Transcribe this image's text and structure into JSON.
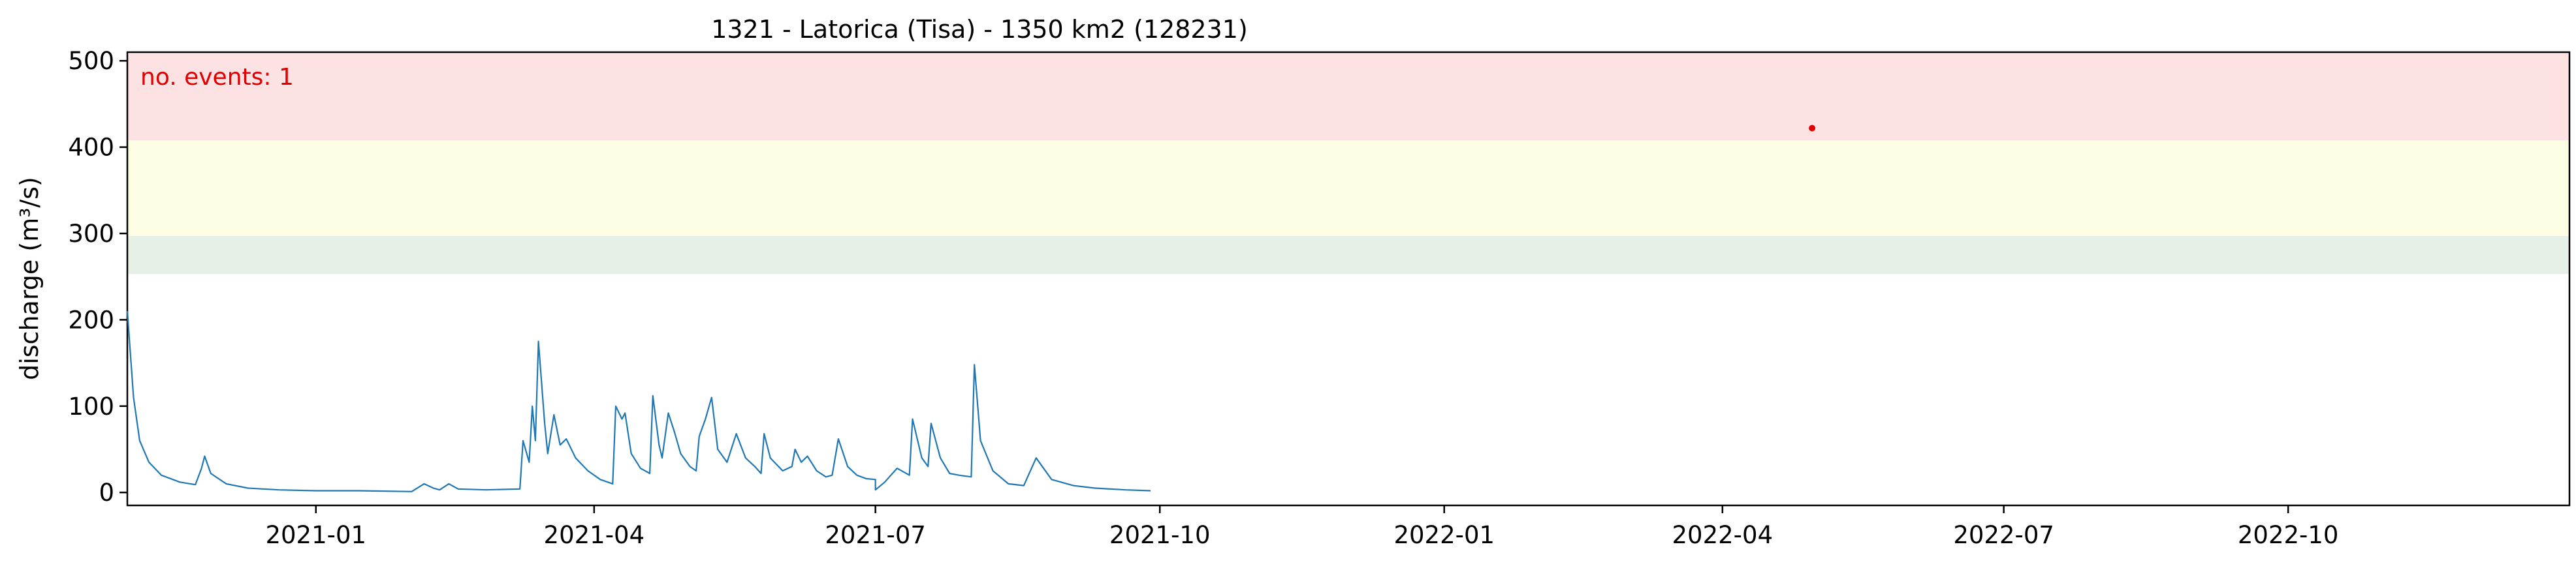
{
  "chart_data": {
    "type": "line",
    "title": "1321 - Latorica (Tisa) - 1350 km2 (128231)",
    "xlabel": "",
    "ylabel": "discharge (m³/s)",
    "annotation": "no. events: 1",
    "xlim": [
      "2020-11-01",
      "2022-12-31"
    ],
    "ylim": [
      -15,
      510
    ],
    "yticks": [
      0,
      100,
      200,
      300,
      400,
      500
    ],
    "xticks": [
      {
        "date": "2021-01-01",
        "label": "2021-01"
      },
      {
        "date": "2021-04-01",
        "label": "2021-04"
      },
      {
        "date": "2021-07-01",
        "label": "2021-07"
      },
      {
        "date": "2021-10-01",
        "label": "2021-10"
      },
      {
        "date": "2022-01-01",
        "label": "2022-01"
      },
      {
        "date": "2022-04-01",
        "label": "2022-04"
      },
      {
        "date": "2022-07-01",
        "label": "2022-07"
      },
      {
        "date": "2022-10-01",
        "label": "2022-10"
      }
    ],
    "threshold_bands": [
      {
        "from": 253,
        "to": 297,
        "color": "#e6f0e6"
      },
      {
        "from": 297,
        "to": 408,
        "color": "#fdfde3"
      },
      {
        "from": 408,
        "to": 510,
        "color": "#fde2e4"
      }
    ],
    "line_color": "#1f77b4",
    "event_point": {
      "date": "2022-04-30",
      "value": 422,
      "color": "#e00000"
    },
    "grid": false,
    "series": [
      {
        "values": [
          [
            "2020-11-01",
            210
          ],
          [
            "2020-11-03",
            110
          ],
          [
            "2020-11-05",
            60
          ],
          [
            "2020-11-08",
            35
          ],
          [
            "2020-11-12",
            20
          ],
          [
            "2020-11-18",
            12
          ],
          [
            "2020-11-23",
            9
          ],
          [
            "2020-11-25",
            28
          ],
          [
            "2020-11-26",
            42
          ],
          [
            "2020-11-28",
            22
          ],
          [
            "2020-12-03",
            10
          ],
          [
            "2020-12-10",
            5
          ],
          [
            "2020-12-20",
            3
          ],
          [
            "2021-01-01",
            2
          ],
          [
            "2021-01-15",
            2
          ],
          [
            "2021-02-01",
            1
          ],
          [
            "2021-02-05",
            10
          ],
          [
            "2021-02-08",
            5
          ],
          [
            "2021-02-10",
            3
          ],
          [
            "2021-02-13",
            10
          ],
          [
            "2021-02-16",
            4
          ],
          [
            "2021-02-25",
            3
          ],
          [
            "2021-03-08",
            4
          ],
          [
            "2021-03-09",
            60
          ],
          [
            "2021-03-11",
            35
          ],
          [
            "2021-03-12",
            100
          ],
          [
            "2021-03-13",
            60
          ],
          [
            "2021-03-14",
            175
          ],
          [
            "2021-03-16",
            80
          ],
          [
            "2021-03-17",
            45
          ],
          [
            "2021-03-19",
            90
          ],
          [
            "2021-03-21",
            55
          ],
          [
            "2021-03-23",
            62
          ],
          [
            "2021-03-26",
            40
          ],
          [
            "2021-03-30",
            25
          ],
          [
            "2021-04-03",
            15
          ],
          [
            "2021-04-07",
            10
          ],
          [
            "2021-04-08",
            100
          ],
          [
            "2021-04-10",
            85
          ],
          [
            "2021-04-11",
            92
          ],
          [
            "2021-04-13",
            45
          ],
          [
            "2021-04-16",
            28
          ],
          [
            "2021-04-19",
            22
          ],
          [
            "2021-04-20",
            112
          ],
          [
            "2021-04-22",
            55
          ],
          [
            "2021-04-23",
            40
          ],
          [
            "2021-04-25",
            92
          ],
          [
            "2021-04-27",
            70
          ],
          [
            "2021-04-29",
            45
          ],
          [
            "2021-05-02",
            30
          ],
          [
            "2021-05-04",
            25
          ],
          [
            "2021-05-05",
            65
          ],
          [
            "2021-05-07",
            85
          ],
          [
            "2021-05-09",
            110
          ],
          [
            "2021-05-11",
            50
          ],
          [
            "2021-05-14",
            35
          ],
          [
            "2021-05-17",
            68
          ],
          [
            "2021-05-20",
            40
          ],
          [
            "2021-05-23",
            30
          ],
          [
            "2021-05-25",
            22
          ],
          [
            "2021-05-26",
            68
          ],
          [
            "2021-05-28",
            40
          ],
          [
            "2021-06-01",
            25
          ],
          [
            "2021-06-04",
            30
          ],
          [
            "2021-06-05",
            50
          ],
          [
            "2021-06-07",
            35
          ],
          [
            "2021-06-09",
            42
          ],
          [
            "2021-06-12",
            25
          ],
          [
            "2021-06-15",
            18
          ],
          [
            "2021-06-17",
            20
          ],
          [
            "2021-06-19",
            62
          ],
          [
            "2021-06-22",
            30
          ],
          [
            "2021-06-25",
            20
          ],
          [
            "2021-06-28",
            16
          ],
          [
            "2021-07-01",
            15
          ],
          [
            "2021-07-04",
            12
          ],
          [
            "2021-07-08",
            28
          ],
          [
            "2021-07-12",
            20
          ],
          [
            "2021-07-13",
            85
          ],
          [
            "2021-07-16",
            40
          ],
          [
            "2021-07-18",
            30
          ],
          [
            "2021-07-19",
            80
          ],
          [
            "2021-07-22",
            40
          ],
          [
            "2021-07-25",
            22
          ],
          [
            "2021-07-28",
            20
          ],
          [
            "2021-08-01",
            18
          ],
          [
            "2021-08-02",
            148
          ],
          [
            "2021-08-04",
            60
          ],
          [
            "2021-08-08",
            25
          ],
          [
            "2021-08-13",
            10
          ],
          [
            "2021-08-18",
            8
          ],
          [
            "2021-08-22",
            40
          ],
          [
            "2021-08-27",
            15
          ],
          [
            "2021-09-03",
            8
          ],
          [
            "2021-09-10",
            5
          ],
          [
            "2021-09-20",
            3
          ],
          [
            "2021-09-28",
            2
          ],
          [
            "2021-07-01",
            3
          ]
        ]
      }
    ]
  }
}
